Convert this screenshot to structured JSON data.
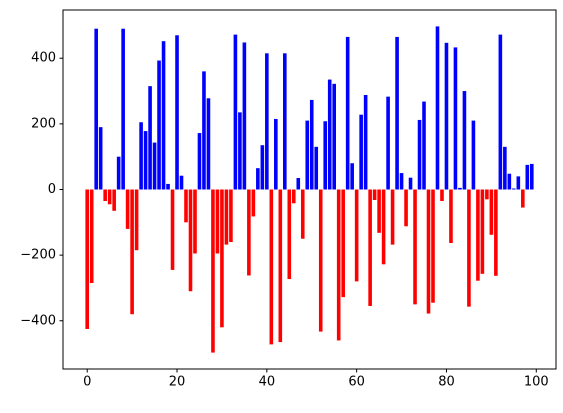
{
  "chart_data": {
    "type": "bar",
    "x": [
      0,
      1,
      2,
      3,
      4,
      5,
      6,
      7,
      8,
      9,
      10,
      11,
      12,
      13,
      14,
      15,
      16,
      17,
      18,
      19,
      20,
      21,
      22,
      23,
      24,
      25,
      26,
      27,
      28,
      29,
      30,
      31,
      32,
      33,
      34,
      35,
      36,
      37,
      38,
      39,
      40,
      41,
      42,
      43,
      44,
      45,
      46,
      47,
      48,
      49,
      50,
      51,
      52,
      53,
      54,
      55,
      56,
      57,
      58,
      59,
      60,
      61,
      62,
      63,
      64,
      65,
      66,
      67,
      68,
      69,
      70,
      71,
      72,
      73,
      74,
      75,
      76,
      77,
      78,
      79,
      80,
      81,
      82,
      83,
      84,
      85,
      86,
      87,
      88,
      89,
      90,
      91,
      92,
      93,
      94,
      95,
      96,
      97,
      98,
      99
    ],
    "values": [
      -425,
      -285,
      490,
      190,
      -35,
      -45,
      -65,
      100,
      490,
      -120,
      -380,
      -185,
      205,
      178,
      315,
      143,
      393,
      452,
      17,
      -245,
      470,
      42,
      -100,
      -310,
      -195,
      172,
      360,
      278,
      -497,
      -195,
      -420,
      -168,
      -160,
      472,
      235,
      448,
      -262,
      -82,
      65,
      135,
      415,
      -472,
      215,
      -465,
      415,
      -273,
      -42,
      35,
      -150,
      210,
      273,
      130,
      -433,
      208,
      335,
      322,
      -460,
      -328,
      465,
      80,
      -280,
      228,
      288,
      -355,
      -32,
      -132,
      -228,
      283,
      -168,
      465,
      50,
      -112,
      36,
      -350,
      212,
      268,
      -378,
      -345,
      497,
      -35,
      447,
      -163,
      433,
      5,
      300,
      -357,
      210,
      -278,
      -257,
      -30,
      -138,
      -263,
      472,
      130,
      48,
      3,
      40,
      -55,
      75,
      78
    ],
    "positive_color": "blue",
    "negative_color": "red",
    "xlim": [
      -5.39,
      104.39
    ],
    "xticks": [
      0,
      20,
      40,
      60,
      80,
      100
    ],
    "ylim": [
      -547,
      547
    ],
    "yticks": [
      {
        "value": -400,
        "label": "−400"
      },
      {
        "value": -200,
        "label": "−200"
      },
      0,
      200,
      400
    ]
  }
}
